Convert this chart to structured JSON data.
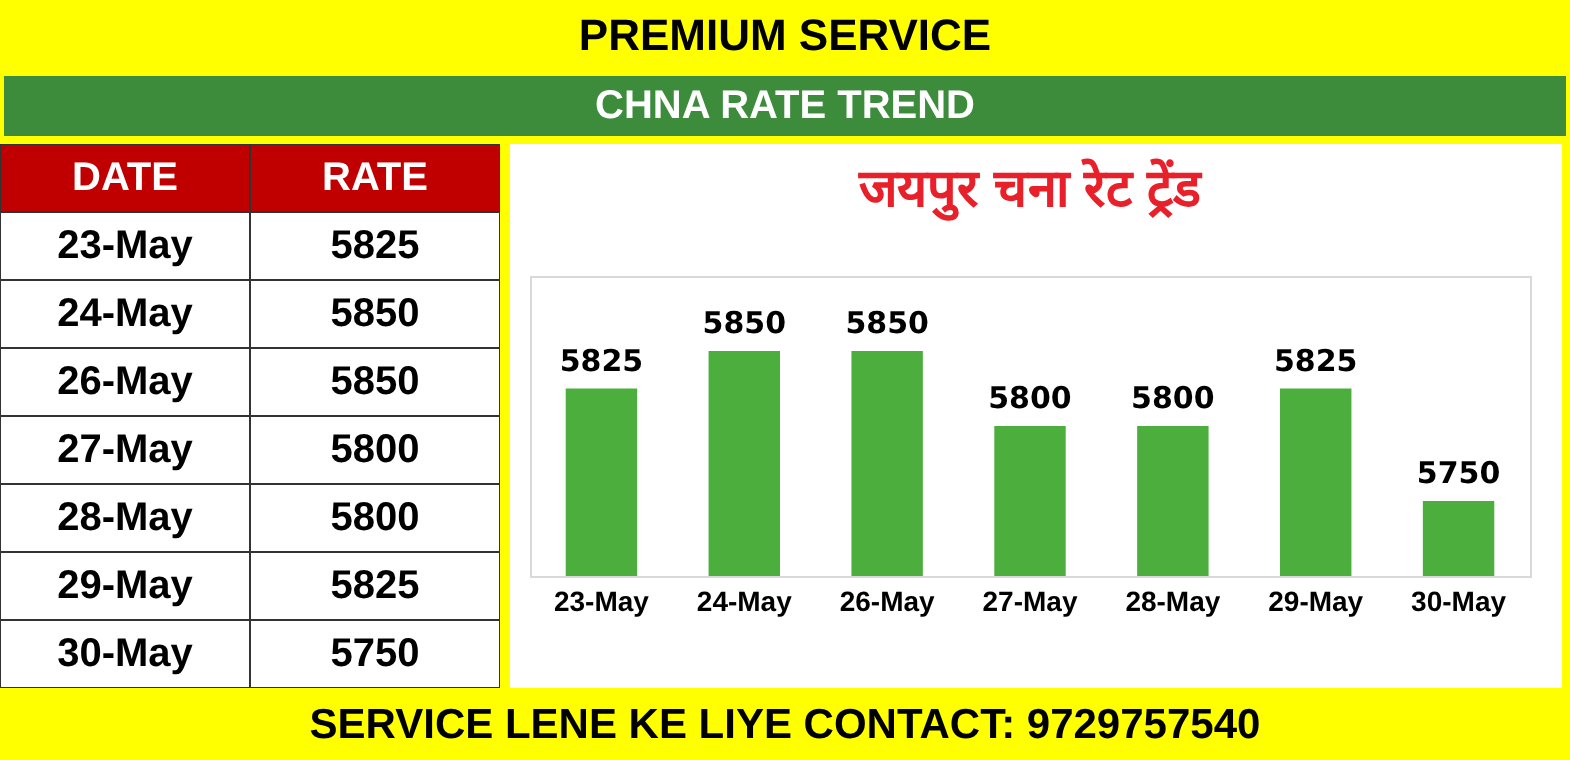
{
  "chart_data": [
    {
      "type": "other",
      "annotations": [
        "DATE",
        "RATE"
      ],
      "categories": [
        "23-May",
        "24-May",
        "26-May",
        "27-May",
        "28-May",
        "29-May",
        "30-May"
      ],
      "values": [
        5825,
        5850,
        5850,
        5800,
        5800,
        5825,
        5750
      ],
      "data_labels": true
    },
    {
      "type": "bar",
      "title": "जयपुर चना रेट ट्रेंड",
      "subtitle": "CHNA RATE TREND",
      "categories": [
        "23-May",
        "24-May",
        "26-May",
        "27-May",
        "28-May",
        "29-May",
        "30-May"
      ],
      "values": [
        5825,
        5850,
        5850,
        5800,
        5800,
        5825,
        5750
      ],
      "color": "#4cae3c",
      "ylim": [
        5700,
        5900
      ],
      "data_labels": true,
      "annotations": [
        "PREMIUM SERVICE",
        "SERVICE LENE KE LIYE CONTACT: 9729757540"
      ]
    }
  ]
}
